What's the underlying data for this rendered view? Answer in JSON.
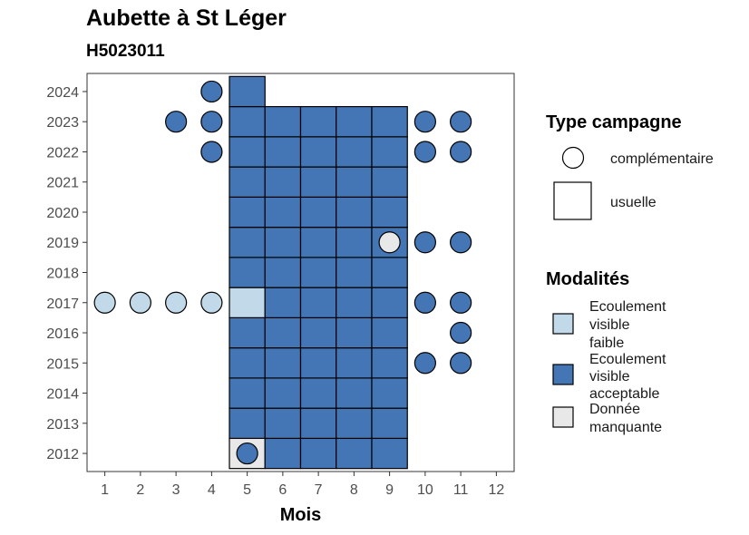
{
  "title": "Aubette à St Léger",
  "subtitle": "H5023011",
  "chart_data": {
    "type": "heatmap",
    "title": "Aubette à St Léger",
    "subtitle": "H5023011",
    "xlabel": "Mois",
    "ylabel": "",
    "x_ticks": [
      1,
      2,
      3,
      4,
      5,
      6,
      7,
      8,
      9,
      10,
      11,
      12
    ],
    "y_ticks": [
      2012,
      2013,
      2014,
      2015,
      2016,
      2017,
      2018,
      2019,
      2020,
      2021,
      2022,
      2023,
      2024
    ],
    "xlim": [
      0.5,
      12.5
    ],
    "ylim": [
      2011.4,
      2024.6
    ],
    "grid": false,
    "colors": {
      "faible": "#c2d9e9",
      "acceptable": "#4475b4",
      "manquante": "#e8e8e8"
    },
    "legend_shape": {
      "title": "Type campagne",
      "items": [
        {
          "shape": "circle",
          "label": "complémentaire"
        },
        {
          "shape": "square",
          "label": "usuelle"
        }
      ]
    },
    "legend_fill": {
      "title": "Modalités",
      "items": [
        {
          "key": "faible",
          "lines": [
            "Ecoulement",
            "visible",
            "faible"
          ]
        },
        {
          "key": "acceptable",
          "lines": [
            "Ecoulement",
            "visible",
            "acceptable"
          ]
        },
        {
          "key": "manquante",
          "lines": [
            "Donnée",
            "manquante"
          ]
        }
      ]
    },
    "tiles": [
      {
        "year": 2012,
        "month": 5,
        "mod": "manquante"
      },
      {
        "year": 2012,
        "month": 6,
        "mod": "acceptable"
      },
      {
        "year": 2012,
        "month": 7,
        "mod": "acceptable"
      },
      {
        "year": 2012,
        "month": 8,
        "mod": "acceptable"
      },
      {
        "year": 2012,
        "month": 9,
        "mod": "acceptable"
      },
      {
        "year": 2013,
        "month": 5,
        "mod": "acceptable"
      },
      {
        "year": 2013,
        "month": 6,
        "mod": "acceptable"
      },
      {
        "year": 2013,
        "month": 7,
        "mod": "acceptable"
      },
      {
        "year": 2013,
        "month": 8,
        "mod": "acceptable"
      },
      {
        "year": 2013,
        "month": 9,
        "mod": "acceptable"
      },
      {
        "year": 2014,
        "month": 5,
        "mod": "acceptable"
      },
      {
        "year": 2014,
        "month": 6,
        "mod": "acceptable"
      },
      {
        "year": 2014,
        "month": 7,
        "mod": "acceptable"
      },
      {
        "year": 2014,
        "month": 8,
        "mod": "acceptable"
      },
      {
        "year": 2014,
        "month": 9,
        "mod": "acceptable"
      },
      {
        "year": 2015,
        "month": 5,
        "mod": "acceptable"
      },
      {
        "year": 2015,
        "month": 6,
        "mod": "acceptable"
      },
      {
        "year": 2015,
        "month": 7,
        "mod": "acceptable"
      },
      {
        "year": 2015,
        "month": 8,
        "mod": "acceptable"
      },
      {
        "year": 2015,
        "month": 9,
        "mod": "acceptable"
      },
      {
        "year": 2016,
        "month": 5,
        "mod": "acceptable"
      },
      {
        "year": 2016,
        "month": 6,
        "mod": "acceptable"
      },
      {
        "year": 2016,
        "month": 7,
        "mod": "acceptable"
      },
      {
        "year": 2016,
        "month": 8,
        "mod": "acceptable"
      },
      {
        "year": 2016,
        "month": 9,
        "mod": "acceptable"
      },
      {
        "year": 2017,
        "month": 5,
        "mod": "faible"
      },
      {
        "year": 2017,
        "month": 6,
        "mod": "acceptable"
      },
      {
        "year": 2017,
        "month": 7,
        "mod": "acceptable"
      },
      {
        "year": 2017,
        "month": 8,
        "mod": "acceptable"
      },
      {
        "year": 2017,
        "month": 9,
        "mod": "acceptable"
      },
      {
        "year": 2018,
        "month": 5,
        "mod": "acceptable"
      },
      {
        "year": 2018,
        "month": 6,
        "mod": "acceptable"
      },
      {
        "year": 2018,
        "month": 7,
        "mod": "acceptable"
      },
      {
        "year": 2018,
        "month": 8,
        "mod": "acceptable"
      },
      {
        "year": 2018,
        "month": 9,
        "mod": "acceptable"
      },
      {
        "year": 2019,
        "month": 5,
        "mod": "acceptable"
      },
      {
        "year": 2019,
        "month": 6,
        "mod": "acceptable"
      },
      {
        "year": 2019,
        "month": 7,
        "mod": "acceptable"
      },
      {
        "year": 2019,
        "month": 8,
        "mod": "acceptable"
      },
      {
        "year": 2019,
        "month": 9,
        "mod": "acceptable"
      },
      {
        "year": 2020,
        "month": 5,
        "mod": "acceptable"
      },
      {
        "year": 2020,
        "month": 6,
        "mod": "acceptable"
      },
      {
        "year": 2020,
        "month": 7,
        "mod": "acceptable"
      },
      {
        "year": 2020,
        "month": 8,
        "mod": "acceptable"
      },
      {
        "year": 2020,
        "month": 9,
        "mod": "acceptable"
      },
      {
        "year": 2021,
        "month": 5,
        "mod": "acceptable"
      },
      {
        "year": 2021,
        "month": 6,
        "mod": "acceptable"
      },
      {
        "year": 2021,
        "month": 7,
        "mod": "acceptable"
      },
      {
        "year": 2021,
        "month": 8,
        "mod": "acceptable"
      },
      {
        "year": 2021,
        "month": 9,
        "mod": "acceptable"
      },
      {
        "year": 2022,
        "month": 5,
        "mod": "acceptable"
      },
      {
        "year": 2022,
        "month": 6,
        "mod": "acceptable"
      },
      {
        "year": 2022,
        "month": 7,
        "mod": "acceptable"
      },
      {
        "year": 2022,
        "month": 8,
        "mod": "acceptable"
      },
      {
        "year": 2022,
        "month": 9,
        "mod": "acceptable"
      },
      {
        "year": 2023,
        "month": 5,
        "mod": "acceptable"
      },
      {
        "year": 2023,
        "month": 6,
        "mod": "acceptable"
      },
      {
        "year": 2023,
        "month": 7,
        "mod": "acceptable"
      },
      {
        "year": 2023,
        "month": 8,
        "mod": "acceptable"
      },
      {
        "year": 2023,
        "month": 9,
        "mod": "acceptable"
      },
      {
        "year": 2024,
        "month": 5,
        "mod": "acceptable"
      }
    ],
    "points": [
      {
        "year": 2012,
        "month": 5,
        "mod": "acceptable"
      },
      {
        "year": 2015,
        "month": 10,
        "mod": "acceptable"
      },
      {
        "year": 2015,
        "month": 11,
        "mod": "acceptable"
      },
      {
        "year": 2016,
        "month": 11,
        "mod": "acceptable"
      },
      {
        "year": 2017,
        "month": 1,
        "mod": "faible"
      },
      {
        "year": 2017,
        "month": 2,
        "mod": "faible"
      },
      {
        "year": 2017,
        "month": 3,
        "mod": "faible"
      },
      {
        "year": 2017,
        "month": 4,
        "mod": "faible"
      },
      {
        "year": 2017,
        "month": 10,
        "mod": "acceptable"
      },
      {
        "year": 2017,
        "month": 11,
        "mod": "acceptable"
      },
      {
        "year": 2019,
        "month": 9,
        "mod": "manquante"
      },
      {
        "year": 2019,
        "month": 10,
        "mod": "acceptable"
      },
      {
        "year": 2019,
        "month": 11,
        "mod": "acceptable"
      },
      {
        "year": 2022,
        "month": 4,
        "mod": "acceptable"
      },
      {
        "year": 2022,
        "month": 10,
        "mod": "acceptable"
      },
      {
        "year": 2022,
        "month": 11,
        "mod": "acceptable"
      },
      {
        "year": 2023,
        "month": 3,
        "mod": "acceptable"
      },
      {
        "year": 2023,
        "month": 4,
        "mod": "acceptable"
      },
      {
        "year": 2023,
        "month": 10,
        "mod": "acceptable"
      },
      {
        "year": 2023,
        "month": 11,
        "mod": "acceptable"
      },
      {
        "year": 2024,
        "month": 4,
        "mod": "acceptable"
      }
    ]
  }
}
